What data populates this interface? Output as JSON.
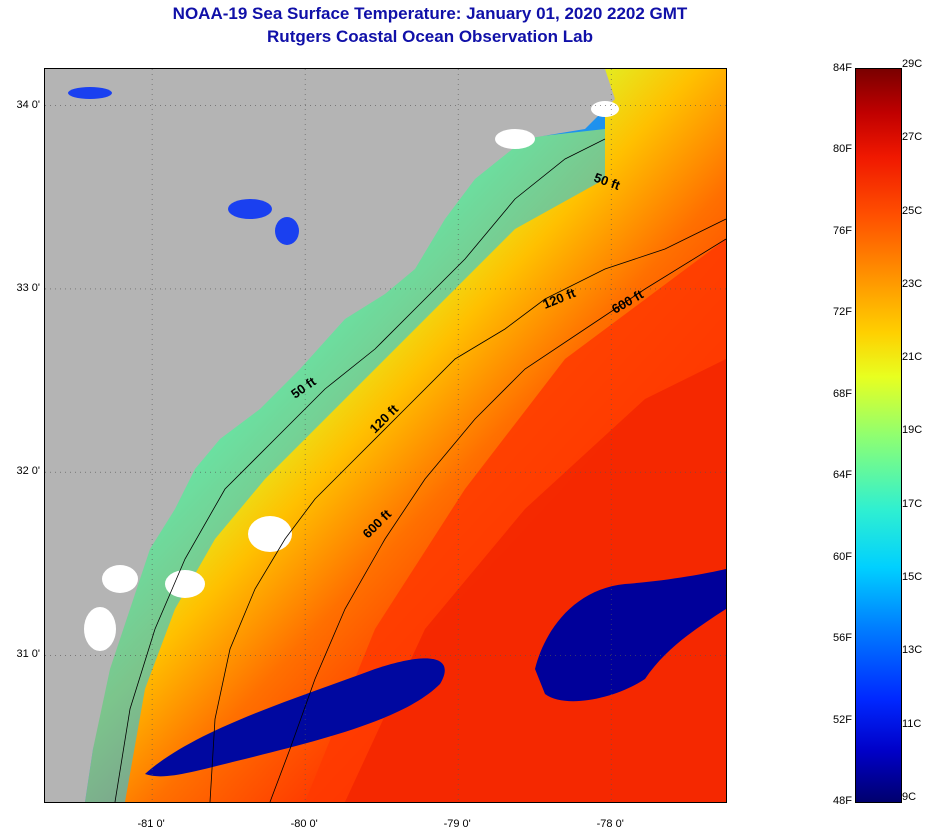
{
  "title": "NOAA-19 Sea Surface Temperature:  January 01, 2020 2202 GMT",
  "subtitle": "Rutgers Coastal Ocean Observation Lab",
  "map": {
    "lon_range": [
      -81.7,
      -77.25
    ],
    "lat_range": [
      30.2,
      34.2
    ],
    "x_ticks": [
      {
        "lon": -81,
        "label": "-81 0'"
      },
      {
        "lon": -80,
        "label": "-80 0'"
      },
      {
        "lon": -79,
        "label": "-79 0'"
      },
      {
        "lon": -78,
        "label": "-78 0'"
      }
    ],
    "y_ticks": [
      {
        "lat": 34,
        "label": "34 0'"
      },
      {
        "lat": 33,
        "label": "33 0'"
      },
      {
        "lat": 32,
        "label": "32 0'"
      },
      {
        "lat": 31,
        "label": "31 0'"
      }
    ],
    "contours": [
      {
        "name": "50 ft"
      },
      {
        "name": "120 ft"
      },
      {
        "name": "600 ft"
      }
    ],
    "land_color": "#b4b4b4",
    "cloud_color": "#ffffff"
  },
  "colorbar": {
    "f_labels": [
      {
        "value": 84,
        "label": "84F"
      },
      {
        "value": 80,
        "label": "80F"
      },
      {
        "value": 76,
        "label": "76F"
      },
      {
        "value": 72,
        "label": "72F"
      },
      {
        "value": 68,
        "label": "68F"
      },
      {
        "value": 64,
        "label": "64F"
      },
      {
        "value": 60,
        "label": "60F"
      },
      {
        "value": 56,
        "label": "56F"
      },
      {
        "value": 52,
        "label": "52F"
      },
      {
        "value": 48,
        "label": "48F"
      }
    ],
    "c_labels": [
      {
        "value": 29,
        "label": "29C"
      },
      {
        "value": 27,
        "label": "27C"
      },
      {
        "value": 25,
        "label": "25C"
      },
      {
        "value": 23,
        "label": "23C"
      },
      {
        "value": 21,
        "label": "21C"
      },
      {
        "value": 19,
        "label": "19C"
      },
      {
        "value": 17,
        "label": "17C"
      },
      {
        "value": 15,
        "label": "15C"
      },
      {
        "value": 13,
        "label": "13C"
      },
      {
        "value": 11,
        "label": "11C"
      },
      {
        "value": 9,
        "label": "9C"
      }
    ],
    "range_f": [
      48,
      84
    ]
  }
}
